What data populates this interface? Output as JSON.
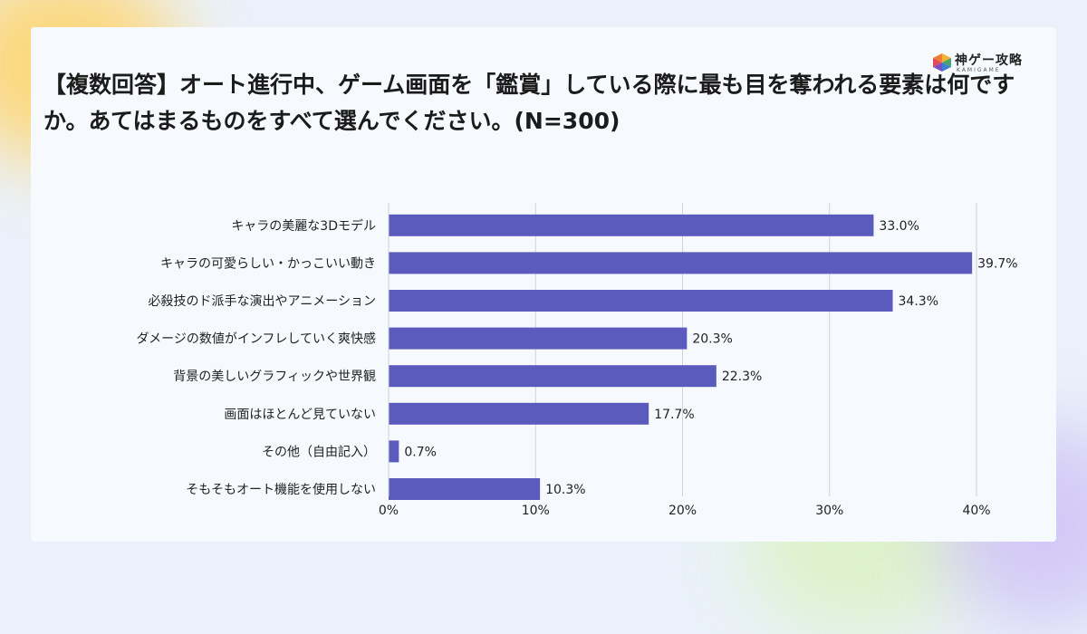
{
  "title": "【複数回答】オート進行中、ゲーム画面を「鑑賞」している際に最も目を奪われる要素は何ですか。あてはまるものをすべて選んでください。(N=300)",
  "logo": {
    "text": "神ゲー攻略",
    "sub": "KAMIGAME",
    "icon": "kamigame-logo-icon"
  },
  "colors": {
    "bar": "#5b5bbd",
    "grid": "#cfd3da",
    "text": "#222222"
  },
  "chart_data": {
    "type": "bar",
    "orientation": "horizontal",
    "categories": [
      "キャラの美麗な3Dモデル",
      "キャラの可愛らしい・かっこいい動き",
      "必殺技のド派手な演出やアニメーション",
      "ダメージの数値がインフレしていく爽快感",
      "背景の美しいグラフィックや世界観",
      "画面はほとんど見ていない",
      "その他（自由記入）",
      "そもそもオート機能を使用しない"
    ],
    "values": [
      33.0,
      39.7,
      34.3,
      20.3,
      22.3,
      17.7,
      0.7,
      10.3
    ],
    "value_labels": [
      "33.0%",
      "39.7%",
      "34.3%",
      "20.3%",
      "22.3%",
      "17.7%",
      "0.7%",
      "10.3%"
    ],
    "xlim": [
      0,
      40
    ],
    "xticks": [
      "0%",
      "10%",
      "20%",
      "30%",
      "40%"
    ],
    "grid": true
  }
}
